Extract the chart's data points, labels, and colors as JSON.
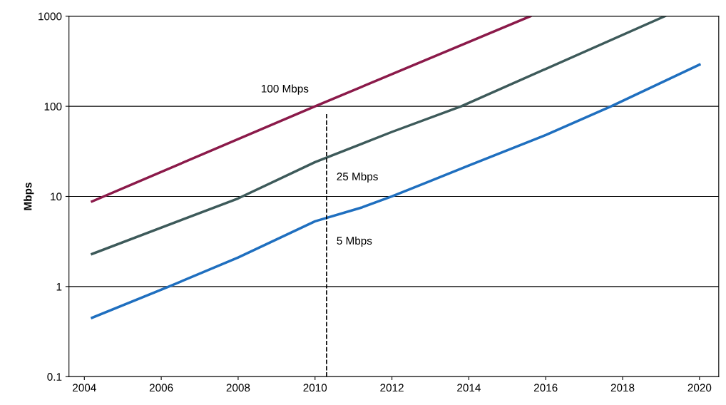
{
  "chart_data": {
    "type": "line",
    "ylabel": "Mbps",
    "log": "y",
    "grid": "y",
    "legend": false,
    "marker": "none",
    "line_style": "solid",
    "xlim": [
      2003.6,
      2020.5
    ],
    "xticks": [
      2004,
      2006,
      2008,
      2010,
      2012,
      2014,
      2016,
      2018,
      2020
    ],
    "ylim": [
      0.1,
      1000
    ],
    "yticks": [
      0.1,
      1,
      10,
      100,
      1000
    ],
    "series": [
      {
        "name": "100 Mbps",
        "color": "#8b1a4a",
        "x": [
          2004.2,
          2010,
          2015.6
        ],
        "values": [
          8.8,
          100,
          1000
        ]
      },
      {
        "name": "25 Mbps",
        "color": "#3d5a5a",
        "x": [
          2004.2,
          2008,
          2010,
          2012,
          2013.8,
          2019.1
        ],
        "values": [
          2.3,
          9.5,
          24,
          52,
          100,
          1000
        ]
      },
      {
        "name": "5 Mbps",
        "color": "#1f6fbf",
        "x": [
          2004.2,
          2006.2,
          2008,
          2010,
          2011.2,
          2012,
          2014,
          2016,
          2017.7,
          2020
        ],
        "values": [
          0.45,
          1,
          2.1,
          5.3,
          7.5,
          10,
          22,
          48,
          100,
          290
        ]
      }
    ],
    "ref_lines": [
      {
        "axis": "x",
        "value": 2010.3,
        "color": "#000000",
        "line_style": "dashed"
      }
    ]
  }
}
